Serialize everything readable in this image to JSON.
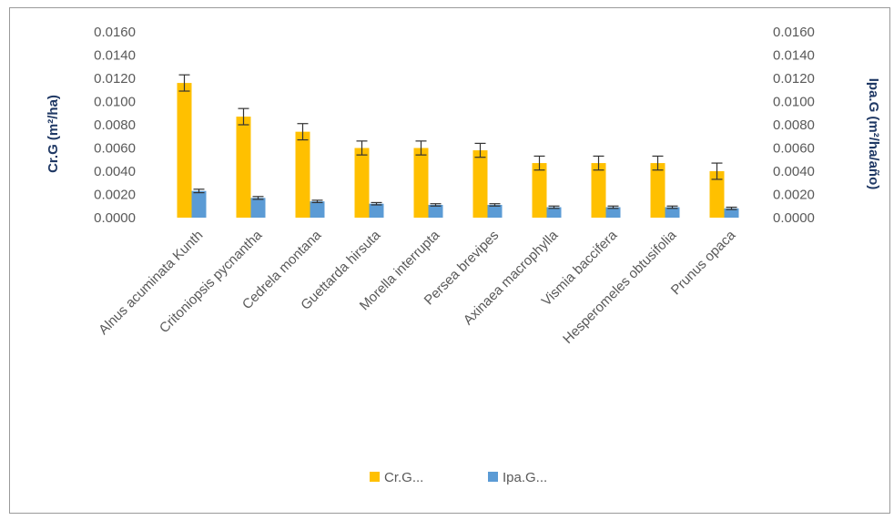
{
  "chart_data": {
    "type": "bar",
    "categories": [
      "Alnus acuminata Kunth",
      "Critoniopsis pycnantha",
      "Cedrela montana",
      "Guettarda hirsuta",
      "Morella interrupta",
      "Persea brevipes",
      "Axinaea macrophylla",
      "Vismia baccifera",
      "Hesperomeles obtusifolia",
      "Prunus opaca"
    ],
    "series": [
      {
        "name": "Cr.G...",
        "axis": "left",
        "color": "#FFC000",
        "values": [
          0.0116,
          0.0087,
          0.0074,
          0.006,
          0.006,
          0.0058,
          0.0047,
          0.0047,
          0.0047,
          0.004
        ],
        "error": [
          0.0007,
          0.0007,
          0.0007,
          0.0006,
          0.0006,
          0.0006,
          0.0006,
          0.0006,
          0.0006,
          0.0007
        ]
      },
      {
        "name": "Ipa.G...",
        "axis": "right",
        "color": "#5B9BD5",
        "values": [
          0.0023,
          0.0017,
          0.0014,
          0.0012,
          0.0011,
          0.0011,
          0.0009,
          0.0009,
          0.0009,
          0.0008
        ],
        "error": [
          0.00015,
          0.00012,
          0.0001,
          0.0001,
          0.0001,
          0.0001,
          0.0001,
          0.0001,
          0.0001,
          0.0001
        ]
      }
    ],
    "ylim": [
      0,
      0.016
    ],
    "y2lim": [
      0,
      0.016
    ],
    "yticks": [
      "0.0000",
      "0.0020",
      "0.0040",
      "0.0060",
      "0.0080",
      "0.0100",
      "0.0120",
      "0.0140",
      "0.0160"
    ],
    "y2ticks": [
      "0.0000",
      "0.0020",
      "0.0040",
      "0.0060",
      "0.0080",
      "0.0100",
      "0.0120",
      "0.0140",
      "0.0160"
    ],
    "ylabel": "Cr.G (m²/ha)",
    "y2label": "Ipa.G (m²/ha/año)",
    "legend_position": "bottom",
    "grid": false,
    "axis_color": "#1F3864",
    "tick_color": "#595959"
  }
}
